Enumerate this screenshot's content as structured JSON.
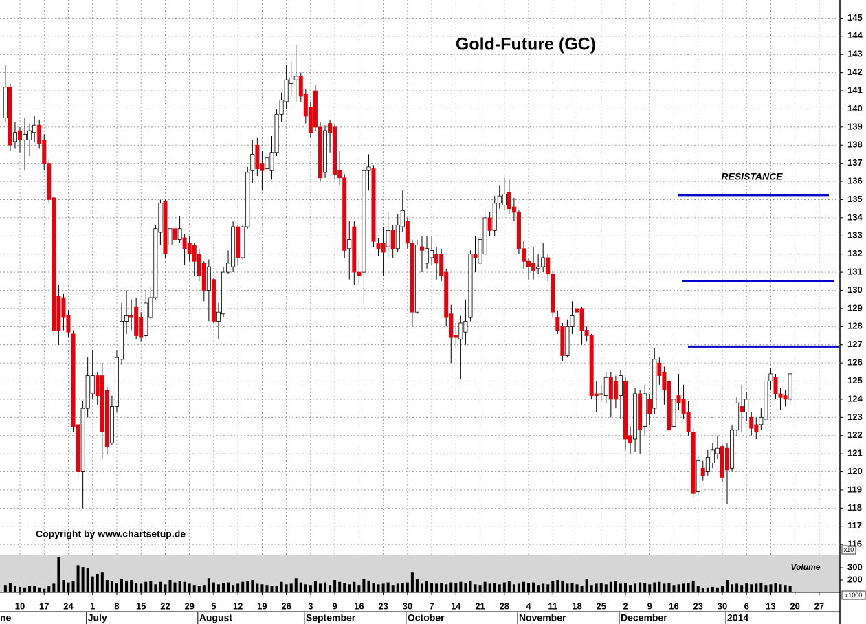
{
  "chart_data": {
    "type": "candlestick",
    "title": "Gold-Future (GC)",
    "copyright": "Copyright by www.chartsetup.de",
    "resistance_label": "RESISTANCE",
    "resistance_lines": [
      135.25,
      130.5,
      126.9
    ],
    "resistance_color": "#0000cc",
    "volume_label": "Volume",
    "volume_scale_label": "x10",
    "volume_unit_label": "x1000",
    "ylim": [
      115.4,
      146
    ],
    "yticks": [
      116,
      117,
      118,
      119,
      120,
      121,
      122,
      123,
      124,
      125,
      126,
      127,
      128,
      129,
      130,
      131,
      132,
      133,
      134,
      135,
      136,
      137,
      138,
      139,
      140,
      141,
      142,
      143,
      144,
      145
    ],
    "volume_ylim": [
      100,
      400
    ],
    "volume_yticks": [
      200,
      300
    ],
    "grid": true,
    "up_color": "#ffffff",
    "down_color": "#e8000b",
    "volume_color": "#000000",
    "categories": [
      null,
      null,
      null,
      "10",
      null,
      null,
      null,
      null,
      "17",
      null,
      null,
      null,
      null,
      "24",
      null,
      null,
      null,
      null,
      "1",
      null,
      null,
      null,
      null,
      "8",
      null,
      null,
      null,
      null,
      "15",
      null,
      null,
      null,
      null,
      "22",
      null,
      null,
      null,
      null,
      "29",
      null,
      null,
      null,
      null,
      "5",
      null,
      null,
      null,
      null,
      "12",
      null,
      null,
      null,
      null,
      "19",
      null,
      null,
      null,
      null,
      "26",
      null,
      null,
      null,
      null,
      "3",
      null,
      null,
      null,
      null,
      "9",
      null,
      null,
      null,
      null,
      "16",
      null,
      null,
      null,
      null,
      "23",
      null,
      null,
      null,
      null,
      "30",
      null,
      null,
      null,
      null,
      "7",
      null,
      null,
      null,
      null,
      "14",
      null,
      null,
      null,
      null,
      "21",
      null,
      null,
      null,
      null,
      "28",
      null,
      null,
      null,
      null,
      "4",
      null,
      null,
      null,
      null,
      "11",
      null,
      null,
      null,
      null,
      "18",
      null,
      null,
      null,
      null,
      "25",
      null,
      null,
      null,
      null,
      "2",
      null,
      null,
      null,
      null,
      "9",
      null,
      null,
      null,
      null,
      "16",
      null,
      null,
      null,
      null,
      "23",
      null,
      null,
      null,
      null,
      "30",
      null,
      null,
      null,
      null,
      "6",
      null,
      null,
      null,
      null,
      "13",
      null,
      null,
      null,
      null,
      "20",
      null,
      null,
      null,
      null,
      "27",
      null,
      null,
      null,
      null
    ],
    "month_categories": [
      "ne",
      null,
      null,
      null,
      null,
      null,
      null,
      null,
      null,
      null,
      null,
      null,
      null,
      null,
      null,
      null,
      null,
      null,
      "July",
      null,
      null,
      null,
      null,
      null,
      null,
      null,
      null,
      null,
      null,
      null,
      null,
      null,
      null,
      null,
      null,
      null,
      null,
      null,
      null,
      null,
      null,
      "August",
      null,
      null,
      null,
      null,
      null,
      null,
      null,
      null,
      null,
      null,
      null,
      null,
      null,
      null,
      null,
      null,
      null,
      null,
      null,
      null,
      null,
      "September",
      null,
      null,
      null,
      null,
      null,
      null,
      null,
      null,
      null,
      null,
      null,
      null,
      null,
      null,
      null,
      null,
      null,
      null,
      null,
      null,
      "October",
      null,
      null,
      null,
      null,
      null,
      null,
      null,
      null,
      null,
      null,
      null,
      null,
      null,
      null,
      null,
      null,
      null,
      null,
      null,
      null,
      null,
      null,
      "November",
      null,
      null,
      null,
      null,
      null,
      null,
      null,
      null,
      null,
      null,
      null,
      null,
      null,
      null,
      null,
      null,
      null,
      null,
      null,
      null,
      "December",
      null,
      null,
      null,
      null,
      null,
      null,
      null,
      null,
      null,
      null,
      null,
      null,
      null,
      null,
      null,
      null,
      null,
      null,
      null,
      null,
      null,
      "2014",
      null,
      null,
      null,
      null,
      null,
      null,
      null,
      null,
      null,
      null,
      null,
      null,
      null,
      null,
      null,
      null,
      null,
      null,
      null,
      null,
      null,
      null
    ],
    "series": [
      {
        "open": [
          139.5,
          141.2,
          138.2,
          138.8,
          138.3,
          138.3,
          138.7,
          139.1,
          138.3,
          137.0,
          135.1,
          129.7,
          129.6,
          128.6,
          127.6,
          122.6,
          120.0,
          123.5,
          124.3,
          125.3,
          125.3,
          124.5,
          121.6,
          123.6,
          126.2,
          128.3,
          128.6,
          129.1,
          128.5,
          127.5,
          128.5,
          129.6,
          133.2,
          134.9,
          132.5,
          133.4,
          132.8,
          132.9,
          132.6,
          132.5,
          132.0,
          131.5,
          130.0,
          130.6,
          128.3,
          128.7,
          131.0,
          131.3,
          133.5,
          131.8,
          133.5,
          136.6,
          138.0,
          137.0,
          136.7,
          136.6,
          137.6,
          139.7,
          140.4,
          141.4,
          141.6,
          141.8,
          140.8,
          140.1,
          141.0,
          139.0,
          136.5,
          139.2,
          139.0,
          136.6,
          136.2,
          132.3,
          133.5,
          131.0,
          131.0,
          136.6,
          136.7,
          132.6,
          132.6,
          132.4,
          133.3,
          132.3,
          133.5,
          133.8,
          132.6,
          128.8,
          132.4,
          131.5,
          131.8,
          132.0,
          132.0,
          131.0,
          128.7,
          127.5,
          127.3,
          127.7,
          128.5,
          132.0,
          131.5,
          132.0,
          134.0,
          133.3,
          134.8,
          134.7,
          135.4,
          134.6,
          134.3,
          132.3,
          131.6,
          131.5,
          131.2,
          131.3,
          131.8,
          130.9,
          128.5,
          128.0,
          126.4,
          128.0,
          129.0,
          129.0,
          127.8,
          127.5,
          124.3,
          124.3,
          124.2,
          125.2,
          125.0,
          124.2,
          125.0,
          122.0,
          121.8,
          124.3,
          122.5,
          124.0,
          123.5,
          126.0,
          125.5,
          125.0,
          122.5,
          124.2,
          124.0,
          123.3,
          122.2,
          118.9,
          120.2,
          120.0,
          120.5,
          121.0,
          121.4,
          121.3,
          120.2,
          122.3,
          123.6,
          123.3,
          123.0,
          122.6,
          122.6,
          122.9,
          125.0,
          125.2,
          124.3,
          124.2,
          124.0,
          null,
          null,
          null,
          null,
          null,
          null,
          null,
          null,
          null,
          null
        ],
        "high": [
          142.4,
          141.4,
          139.3,
          139.0,
          139.5,
          139.2,
          139.6,
          139.4,
          138.6,
          137.2,
          135.2,
          130.3,
          129.8,
          128.9,
          127.8,
          122.7,
          123.9,
          126.3,
          126.7,
          125.5,
          126.0,
          124.7,
          124.2,
          126.7,
          129.3,
          130.0,
          129.5,
          129.6,
          128.8,
          130.0,
          130.2,
          133.6,
          135.0,
          135.0,
          134.0,
          134.2,
          134.1,
          133.1,
          133.0,
          132.6,
          132.3,
          131.6,
          131.7,
          130.7,
          129.3,
          131.3,
          132.2,
          133.8,
          133.6,
          133.6,
          136.8,
          138.3,
          138.4,
          137.7,
          138.2,
          138.5,
          140.0,
          140.9,
          142.4,
          142.6,
          143.5,
          142.0,
          141.1,
          140.4,
          141.3,
          139.3,
          139.1,
          139.4,
          139.2,
          137.7,
          136.4,
          133.8,
          133.8,
          131.8,
          136.9,
          137.5,
          136.9,
          132.9,
          133.5,
          134.3,
          133.6,
          134.2,
          135.5,
          134.0,
          132.8,
          132.8,
          133.0,
          133.0,
          133.0,
          132.4,
          132.3,
          131.2,
          129.2,
          128.2,
          128.6,
          129.5,
          132.2,
          133.0,
          133.1,
          134.5,
          134.3,
          135.2,
          135.8,
          136.2,
          136.1,
          135.1,
          134.4,
          132.7,
          131.8,
          132.4,
          132.0,
          132.6,
          132.0,
          131.1,
          128.9,
          128.2,
          128.4,
          129.4,
          129.3,
          129.1,
          128.0,
          127.6,
          125.0,
          124.8,
          125.5,
          125.5,
          125.3,
          125.6,
          125.2,
          122.5,
          124.6,
          124.5,
          124.8,
          124.3,
          126.8,
          126.3,
          125.8,
          125.1,
          124.3,
          125.4,
          124.8,
          123.9,
          122.4,
          120.9,
          120.6,
          121.2,
          121.6,
          122.0,
          121.5,
          121.6,
          122.6,
          124.1,
          124.8,
          124.4,
          123.3,
          123.0,
          123.5,
          125.3,
          125.7,
          125.4,
          124.6,
          124.5,
          125.5,
          null,
          null,
          null,
          null,
          null,
          null,
          null,
          null,
          null,
          null
        ],
        "low": [
          139.3,
          137.7,
          137.8,
          137.6,
          136.6,
          137.4,
          138.2,
          137.8,
          136.6,
          134.8,
          127.5,
          127.0,
          127.8,
          127.4,
          122.2,
          119.7,
          118.0,
          123.0,
          124.0,
          123.7,
          120.7,
          121.0,
          121.5,
          123.3,
          125.9,
          127.6,
          127.8,
          127.3,
          127.2,
          127.4,
          128.4,
          129.5,
          132.5,
          131.8,
          131.9,
          132.4,
          132.6,
          131.4,
          131.6,
          130.8,
          130.5,
          129.4,
          128.3,
          128.2,
          127.3,
          128.5,
          130.9,
          131.0,
          131.4,
          131.7,
          133.4,
          135.9,
          136.3,
          135.5,
          135.9,
          136.1,
          137.4,
          139.3,
          140.0,
          140.7,
          140.4,
          140.4,
          139.2,
          138.4,
          138.8,
          136.0,
          136.2,
          137.6,
          136.1,
          135.8,
          131.8,
          130.6,
          130.3,
          130.3,
          129.3,
          135.5,
          132.4,
          131.9,
          130.8,
          131.8,
          131.8,
          132.1,
          133.2,
          132.3,
          128.0,
          128.7,
          131.0,
          131.2,
          131.4,
          130.6,
          130.5,
          128.0,
          126.0,
          126.8,
          125.1,
          127.0,
          128.3,
          131.0,
          131.4,
          131.9,
          133.0,
          133.0,
          134.5,
          134.4,
          134.2,
          133.8,
          132.0,
          131.2,
          130.6,
          130.6,
          130.9,
          131.0,
          130.5,
          128.5,
          127.6,
          126.1,
          126.3,
          127.6,
          128.4,
          127.0,
          127.2,
          124.0,
          123.3,
          123.9,
          123.8,
          123.0,
          123.5,
          122.9,
          121.2,
          121.0,
          121.1,
          121.0,
          122.0,
          122.6,
          123.2,
          124.8,
          123.7,
          121.9,
          122.2,
          123.4,
          122.9,
          122.0,
          118.6,
          118.7,
          119.5,
          119.8,
          120.2,
          120.7,
          119.4,
          118.2,
          120.0,
          122.0,
          122.2,
          122.8,
          122.0,
          121.8,
          122.3,
          122.8,
          124.5,
          124.0,
          123.4,
          123.6,
          123.8,
          null,
          null,
          null,
          null,
          null,
          null,
          null,
          null,
          null,
          null
        ],
        "close": [
          141.2,
          138.0,
          138.7,
          138.3,
          138.6,
          138.8,
          139.1,
          138.1,
          137.0,
          135.0,
          127.8,
          127.8,
          128.5,
          127.7,
          122.5,
          120.0,
          123.5,
          125.3,
          125.3,
          124.2,
          122.2,
          121.4,
          123.6,
          126.3,
          128.3,
          128.6,
          128.5,
          127.5,
          127.4,
          129.3,
          129.6,
          133.4,
          134.8,
          132.0,
          133.4,
          132.8,
          133.4,
          132.3,
          132.0,
          131.6,
          130.8,
          130.0,
          131.3,
          128.3,
          128.8,
          131.0,
          131.5,
          133.5,
          131.8,
          133.5,
          136.5,
          137.5,
          136.7,
          136.6,
          137.3,
          137.6,
          139.7,
          140.5,
          141.6,
          141.7,
          141.8,
          140.7,
          139.6,
          138.7,
          139.0,
          136.2,
          138.8,
          138.7,
          136.4,
          136.2,
          132.2,
          132.8,
          131.0,
          130.8,
          136.6,
          136.8,
          132.7,
          132.3,
          132.1,
          133.3,
          132.3,
          133.6,
          134.4,
          132.6,
          128.8,
          132.5,
          132.2,
          132.3,
          132.2,
          131.5,
          130.8,
          128.5,
          127.4,
          127.4,
          128.2,
          128.3,
          132.0,
          131.8,
          132.8,
          134.0,
          133.3,
          134.8,
          135.2,
          135.3,
          134.5,
          134.3,
          132.3,
          131.6,
          131.3,
          131.1,
          131.3,
          131.8,
          130.9,
          128.8,
          127.8,
          126.4,
          128.0,
          128.6,
          128.8,
          127.8,
          127.5,
          124.2,
          124.2,
          124.3,
          125.2,
          124.0,
          124.0,
          125.3,
          121.8,
          121.6,
          124.3,
          122.3,
          124.3,
          123.2,
          126.2,
          125.3,
          124.5,
          122.3,
          124.0,
          123.8,
          123.2,
          122.2,
          118.8,
          120.6,
          119.8,
          120.8,
          121.2,
          121.3,
          119.7,
          120.1,
          122.3,
          123.8,
          123.3,
          124.0,
          122.4,
          122.2,
          123.0,
          125.0,
          125.4,
          124.3,
          124.1,
          124.0,
          125.4,
          null,
          null,
          null,
          null,
          null,
          null,
          null,
          null,
          null,
          null
        ],
        "volume": [
          160,
          175,
          150,
          145,
          140,
          150,
          155,
          140,
          130,
          150,
          170,
          385,
          200,
          180,
          190,
          320,
          305,
          300,
          230,
          250,
          260,
          200,
          190,
          175,
          210,
          195,
          200,
          175,
          170,
          185,
          190,
          165,
          185,
          165,
          200,
          180,
          190,
          185,
          170,
          160,
          150,
          160,
          215,
          180,
          165,
          175,
          180,
          160,
          170,
          185,
          190,
          200,
          170,
          165,
          160,
          155,
          150,
          185,
          165,
          170,
          215,
          180,
          165,
          160,
          190,
          170,
          180,
          160,
          200,
          185,
          175,
          165,
          185,
          160,
          210,
          195,
          175,
          165,
          170,
          180,
          160,
          170,
          175,
          180,
          260,
          205,
          170,
          190,
          175,
          170,
          175,
          165,
          180,
          175,
          185,
          175,
          195,
          165,
          160,
          185,
          170,
          175,
          165,
          180,
          190,
          165,
          170,
          185,
          175,
          180,
          160,
          170,
          165,
          190,
          200,
          195,
          170,
          175,
          165,
          155,
          210,
          160,
          170,
          175,
          165,
          185,
          190,
          170,
          175,
          160,
          170,
          180,
          175,
          165,
          180,
          185,
          170,
          175,
          160,
          165,
          170,
          175,
          195,
          155,
          135,
          140,
          145,
          140,
          150,
          200,
          165,
          170,
          160,
          175,
          165,
          170,
          175,
          160,
          165,
          175,
          165,
          160,
          155,
          null,
          null,
          null,
          null,
          null,
          null,
          null,
          null,
          null,
          null
        ]
      }
    ]
  }
}
